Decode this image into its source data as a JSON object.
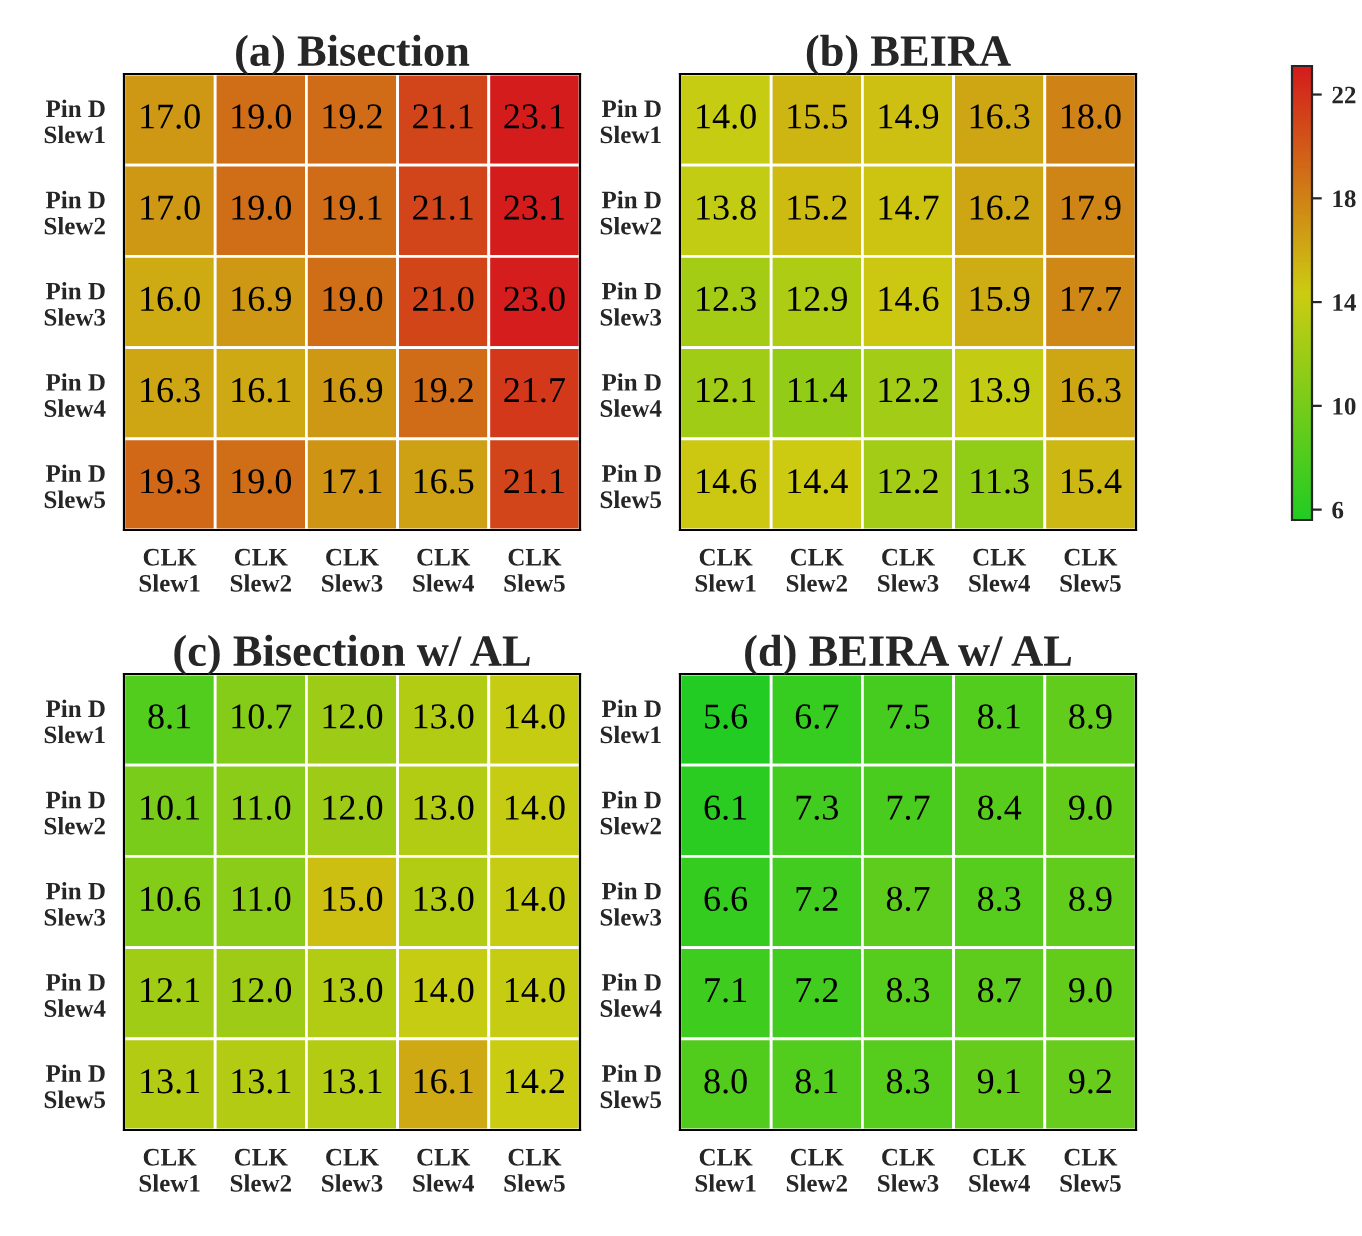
{
  "chart_data": [
    {
      "type": "heatmap",
      "title": "(a) Bisection",
      "categories": [
        "CLK\nSlew1",
        "CLK\nSlew2",
        "CLK\nSlew3",
        "CLK\nSlew4",
        "CLK\nSlew5"
      ],
      "y_categories": [
        "Pin D\nSlew1",
        "Pin D\nSlew2",
        "Pin D\nSlew3",
        "Pin D\nSlew4",
        "Pin D\nSlew5"
      ],
      "cells": [
        [
          17.0,
          19.0,
          19.2,
          21.1,
          23.1
        ],
        [
          17.0,
          19.0,
          19.1,
          21.1,
          23.1
        ],
        [
          16.0,
          16.9,
          19.0,
          21.0,
          23.0
        ],
        [
          16.3,
          16.1,
          16.9,
          19.2,
          21.7
        ],
        [
          19.3,
          19.0,
          17.1,
          16.5,
          21.1
        ]
      ],
      "cell_labels": [
        [
          "17.0",
          "19.0",
          "19.2",
          "21.1",
          "23.1"
        ],
        [
          "17.0",
          "19.0",
          "19.1",
          "21.1",
          "23.1"
        ],
        [
          "16.0",
          "16.9",
          "19.0",
          "21.0",
          "23.0"
        ],
        [
          "16.3",
          "16.1",
          "16.9",
          "19.2",
          "21.7"
        ],
        [
          "19.3",
          "19.0",
          "17.1",
          "16.5",
          "21.1"
        ]
      ]
    },
    {
      "type": "heatmap",
      "title": "(b) BEIRA",
      "categories": [
        "CLK\nSlew1",
        "CLK\nSlew2",
        "CLK\nSlew3",
        "CLK\nSlew4",
        "CLK\nSlew5"
      ],
      "y_categories": [
        "Pin D\nSlew1",
        "Pin D\nSlew2",
        "Pin D\nSlew3",
        "Pin D\nSlew4",
        "Pin D\nSlew5"
      ],
      "cells": [
        [
          14.0,
          15.5,
          14.9,
          16.3,
          18.0
        ],
        [
          13.8,
          15.2,
          14.7,
          16.2,
          17.9
        ],
        [
          12.3,
          12.9,
          14.6,
          15.9,
          17.7
        ],
        [
          12.1,
          11.4,
          12.2,
          13.9,
          16.3
        ],
        [
          14.6,
          14.4,
          12.2,
          11.3,
          15.4
        ]
      ],
      "cell_labels": [
        [
          "14.0",
          "15.5",
          "14.9",
          "16.3",
          "18.0"
        ],
        [
          "13.8",
          "15.2",
          "14.7",
          "16.2",
          "17.9"
        ],
        [
          "12.3",
          "12.9",
          "14.6",
          "15.9",
          "17.7"
        ],
        [
          "12.1",
          "11.4",
          "12.2",
          "13.9",
          "16.3"
        ],
        [
          "14.6",
          "14.4",
          "12.2",
          "11.3",
          "15.4"
        ]
      ],
      "clim": [
        5.6,
        23.1
      ],
      "cticks": [
        6,
        10,
        14,
        18,
        22
      ]
    },
    {
      "type": "heatmap",
      "title": "(c) Bisection w/ AL",
      "categories": [
        "CLK\nSlew1",
        "CLK\nSlew2",
        "CLK\nSlew3",
        "CLK\nSlew4",
        "CLK\nSlew5"
      ],
      "y_categories": [
        "Pin D\nSlew1",
        "Pin D\nSlew2",
        "Pin D\nSlew3",
        "Pin D\nSlew4",
        "Pin D\nSlew5"
      ],
      "cells": [
        [
          8.1,
          10.7,
          12.0,
          13.0,
          14.0
        ],
        [
          10.1,
          11.0,
          12.0,
          13.0,
          14.0
        ],
        [
          10.6,
          11.0,
          15.0,
          13.0,
          14.0
        ],
        [
          12.1,
          12.0,
          13.0,
          14.0,
          14.0
        ],
        [
          13.1,
          13.1,
          13.1,
          16.1,
          14.2
        ]
      ],
      "cell_labels": [
        [
          "8.1",
          "10.7",
          "12.0",
          "13.0",
          "14.0"
        ],
        [
          "10.1",
          "11.0",
          "12.0",
          "13.0",
          "14.0"
        ],
        [
          "10.6",
          "11.0",
          "15.0",
          "13.0",
          "14.0"
        ],
        [
          "12.1",
          "12.0",
          "13.0",
          "14.0",
          "14.0"
        ],
        [
          "13.1",
          "13.1",
          "13.1",
          "16.1",
          "14.2"
        ]
      ]
    },
    {
      "type": "heatmap",
      "title": "(d) BEIRA w/ AL",
      "categories": [
        "CLK\nSlew1",
        "CLK\nSlew2",
        "CLK\nSlew3",
        "CLK\nSlew4",
        "CLK\nSlew5"
      ],
      "y_categories": [
        "Pin D\nSlew1",
        "Pin D\nSlew2",
        "Pin D\nSlew3",
        "Pin D\nSlew4",
        "Pin D\nSlew5"
      ],
      "cells": [
        [
          5.6,
          6.7,
          7.5,
          8.1,
          8.9
        ],
        [
          6.1,
          7.3,
          7.7,
          8.4,
          9.0
        ],
        [
          6.6,
          7.2,
          8.7,
          8.3,
          8.9
        ],
        [
          7.1,
          7.2,
          8.3,
          8.7,
          9.0
        ],
        [
          8.0,
          8.1,
          8.3,
          9.1,
          9.2
        ]
      ],
      "cell_labels": [
        [
          "5.6",
          "6.7",
          "7.5",
          "8.1",
          "8.9"
        ],
        [
          "6.1",
          "7.3",
          "7.7",
          "8.4",
          "9.0"
        ],
        [
          "6.6",
          "7.2",
          "8.7",
          "8.3",
          "8.9"
        ],
        [
          "7.1",
          "7.2",
          "8.3",
          "8.7",
          "9.0"
        ],
        [
          "8.0",
          "8.1",
          "8.3",
          "9.1",
          "9.2"
        ]
      ]
    }
  ]
}
